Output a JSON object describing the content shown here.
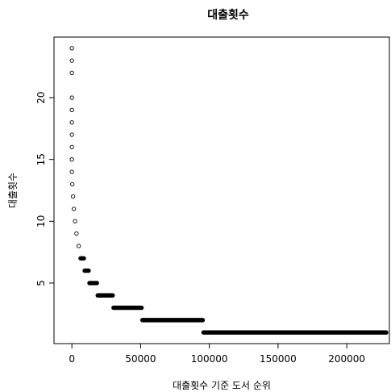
{
  "chart_data": {
    "type": "scatter",
    "title": "대출횟수",
    "xlabel": "대출횟수 기준 도서 순위",
    "ylabel": "대출횟수",
    "xlim": [
      -13000,
      231000
    ],
    "ylim": [
      0.1,
      24.9
    ],
    "x_ticks": [
      0,
      50000,
      100000,
      150000,
      200000
    ],
    "x_tick_labels": [
      "0",
      "50000",
      "100000",
      "150000",
      "200000"
    ],
    "y_ticks": [
      5,
      10,
      15,
      20
    ],
    "y_tick_labels": [
      "5",
      "10",
      "15",
      "20"
    ],
    "grid": false,
    "marker": "open-circle",
    "bands": [
      {
        "y": 24,
        "x_start": 0,
        "x_end": 0
      },
      {
        "y": 23,
        "x_start": 0,
        "x_end": 0
      },
      {
        "y": 22,
        "x_start": 0,
        "x_end": 0
      },
      {
        "y": 20,
        "x_start": 0,
        "x_end": 0
      },
      {
        "y": 19,
        "x_start": 0,
        "x_end": 0
      },
      {
        "y": 18,
        "x_start": 0,
        "x_end": 0
      },
      {
        "y": 17,
        "x_start": 0,
        "x_end": 0
      },
      {
        "y": 16,
        "x_start": 0,
        "x_end": 0
      },
      {
        "y": 15,
        "x_start": 0,
        "x_end": 0
      },
      {
        "y": 14,
        "x_start": 0,
        "x_end": 0
      },
      {
        "y": 13,
        "x_start": 0,
        "x_end": 600
      },
      {
        "y": 12,
        "x_start": 600,
        "x_end": 1100
      },
      {
        "y": 11,
        "x_start": 1100,
        "x_end": 1800
      },
      {
        "y": 10,
        "x_start": 1800,
        "x_end": 2800
      },
      {
        "y": 9,
        "x_start": 2800,
        "x_end": 3900
      },
      {
        "y": 8,
        "x_start": 3900,
        "x_end": 6000
      },
      {
        "y": 7,
        "x_start": 6000,
        "x_end": 9000
      },
      {
        "y": 6,
        "x_start": 9000,
        "x_end": 12500
      },
      {
        "y": 5,
        "x_start": 12500,
        "x_end": 18500
      },
      {
        "y": 4,
        "x_start": 18500,
        "x_end": 30000
      },
      {
        "y": 3,
        "x_start": 30000,
        "x_end": 51000
      },
      {
        "y": 2,
        "x_start": 51000,
        "x_end": 95500
      },
      {
        "y": 1,
        "x_start": 95500,
        "x_end": 229000
      }
    ]
  }
}
